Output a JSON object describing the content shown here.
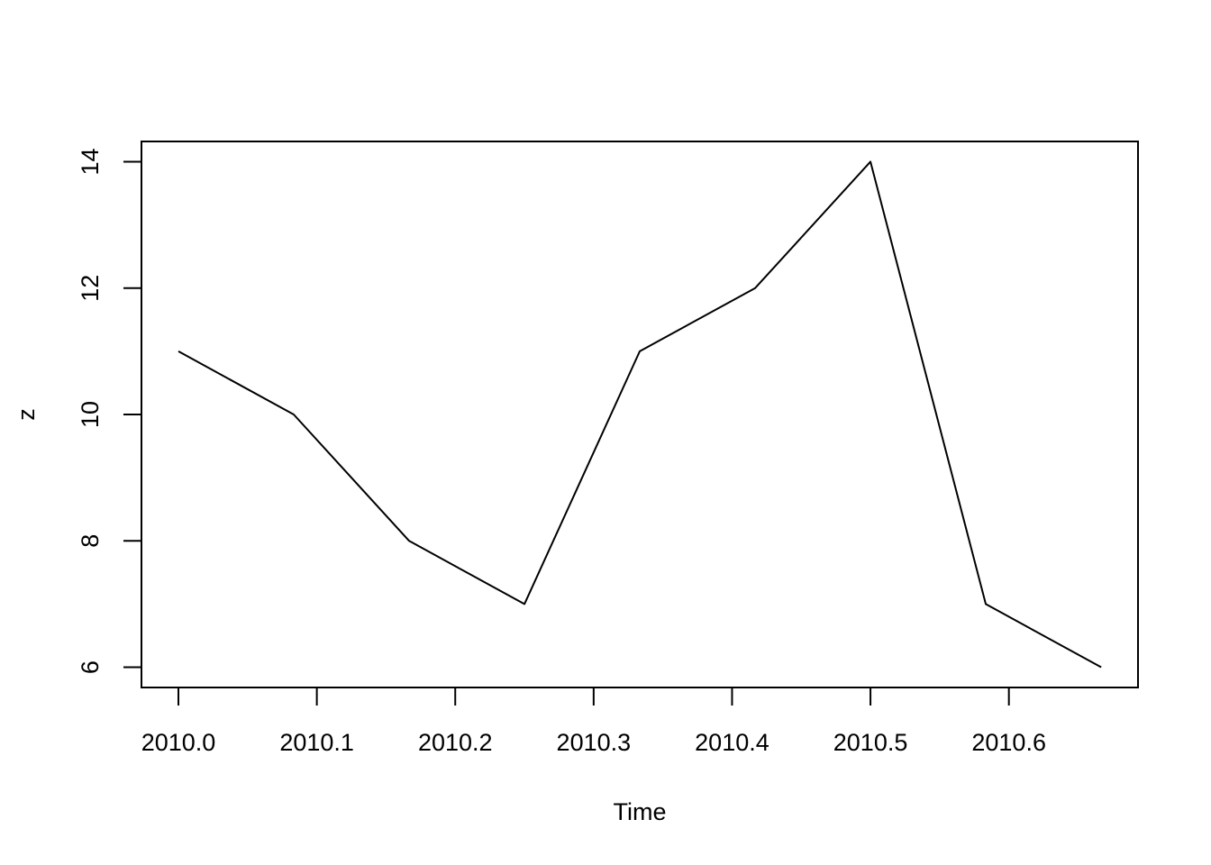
{
  "chart_data": {
    "type": "line",
    "x_label": "Time",
    "y_label": "z",
    "x": [
      2010,
      2010.0833,
      2010.1667,
      2010.25,
      2010.3333,
      2010.4167,
      2010.5,
      2010.5833,
      2010.6667
    ],
    "series": [
      {
        "color": "#000000",
        "values": [
          11,
          10,
          8,
          7,
          11,
          12,
          14,
          7,
          6
        ]
      }
    ],
    "xlim": [
      2009.9733,
      2010.6933
    ],
    "ylim": [
      5.68,
      14.32
    ],
    "xticks": [
      {
        "value": 2010,
        "label": "2010.0"
      },
      2010.1,
      2010.2,
      2010.3,
      2010.4,
      2010.5,
      2010.6
    ],
    "yticks": [
      6,
      8,
      10,
      12,
      14
    ]
  }
}
